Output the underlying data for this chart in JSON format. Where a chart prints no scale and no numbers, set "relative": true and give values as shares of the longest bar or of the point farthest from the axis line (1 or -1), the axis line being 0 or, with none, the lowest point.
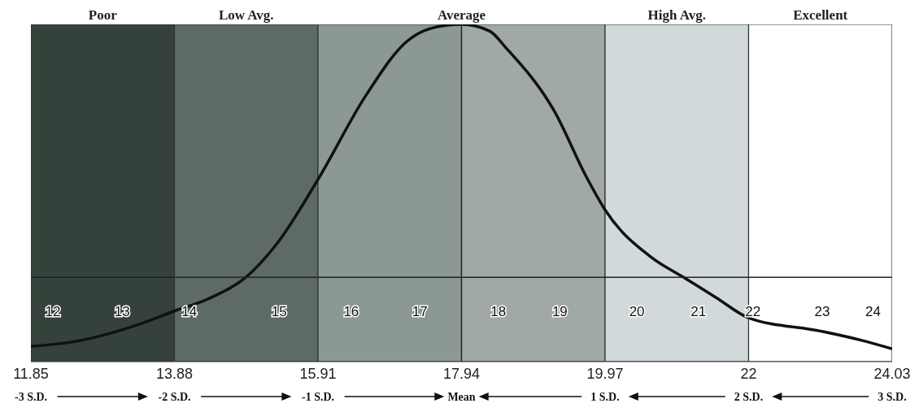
{
  "chart_data": {
    "type": "line",
    "relative": true,
    "marker": "none",
    "x": [
      11.85,
      12.56,
      13.37,
      13.88,
      14.4,
      14.89,
      15.33,
      15.91,
      16.59,
      17.17,
      17.54,
      17.94,
      18.34,
      18.57,
      19.26,
      19.7,
      19.97,
      20.62,
      21.08,
      21.54,
      22,
      23.03,
      23.6,
      24.03
    ],
    "series": [
      {
        "color": "#111111",
        "values": [
          0.045,
          0.063,
          0.11,
          0.15,
          0.19,
          0.25,
          0.35,
          0.54,
          0.79,
          0.95,
          0.99,
          1,
          0.98,
          0.93,
          0.74,
          0.55,
          0.45,
          0.31,
          0.25,
          0.19,
          0.13,
          0.09,
          0.063,
          0.038
        ]
      }
    ],
    "xlim": [
      11.85,
      24.03
    ],
    "xticks": [
      {
        "value": 11.85,
        "label": "11.85"
      },
      {
        "value": 13.88,
        "label": "13.88"
      },
      {
        "value": 15.91,
        "label": "15.91"
      },
      {
        "value": 17.94,
        "label": "17.94"
      },
      {
        "value": 19.97,
        "label": "19.97"
      },
      22,
      {
        "value": 24.03,
        "label": "24.03"
      }
    ],
    "bands": [
      {
        "axis": "x",
        "from": 11.85,
        "to": 13.88,
        "label": "Poor",
        "color": "#35423b"
      },
      {
        "axis": "x",
        "from": 13.88,
        "to": 15.91,
        "label": "Low Avg.",
        "color": "#5d6b64"
      },
      {
        "axis": "x",
        "from": 15.91,
        "to": 17.94,
        "label": null,
        "color": "#8c9892"
      },
      {
        "axis": "x",
        "from": 17.94,
        "to": 19.97,
        "label": null,
        "color": "#a0a9a4"
      },
      {
        "axis": "x",
        "from": 19.97,
        "to": 22,
        "label": "High  Avg.",
        "color": "#d2d9db"
      },
      {
        "axis": "x",
        "from": 22,
        "to": 24.03,
        "label": "Excellent",
        "color": "#ffffff"
      }
    ],
    "ref_lines": [
      {
        "axis": "x",
        "value": 17.94,
        "label": "Average"
      }
    ],
    "x2lim": [
      11.85,
      24.03
    ],
    "x2ticks": [
      {
        "value": 12.16,
        "label": "12"
      },
      {
        "value": 13.14,
        "label": "13"
      },
      {
        "value": 14.09,
        "label": "14"
      },
      {
        "value": 15.36,
        "label": "15"
      },
      {
        "value": 16.38,
        "label": "16"
      },
      {
        "value": 17.35,
        "label": "17"
      },
      {
        "value": 18.46,
        "label": "18"
      },
      {
        "value": 19.33,
        "label": "19"
      },
      {
        "value": 20.42,
        "label": "20"
      },
      {
        "value": 21.29,
        "label": "21"
      },
      {
        "value": 22.06,
        "label": "22"
      },
      {
        "value": 23.04,
        "label": "23"
      },
      {
        "value": 23.76,
        "label": "24"
      }
    ],
    "annotations": [
      "-3 S.D.",
      "-2 S.D.",
      "-1 S.D.",
      "Mean",
      "1 S.D.",
      "2 S.D.",
      "3 S.D."
    ]
  }
}
